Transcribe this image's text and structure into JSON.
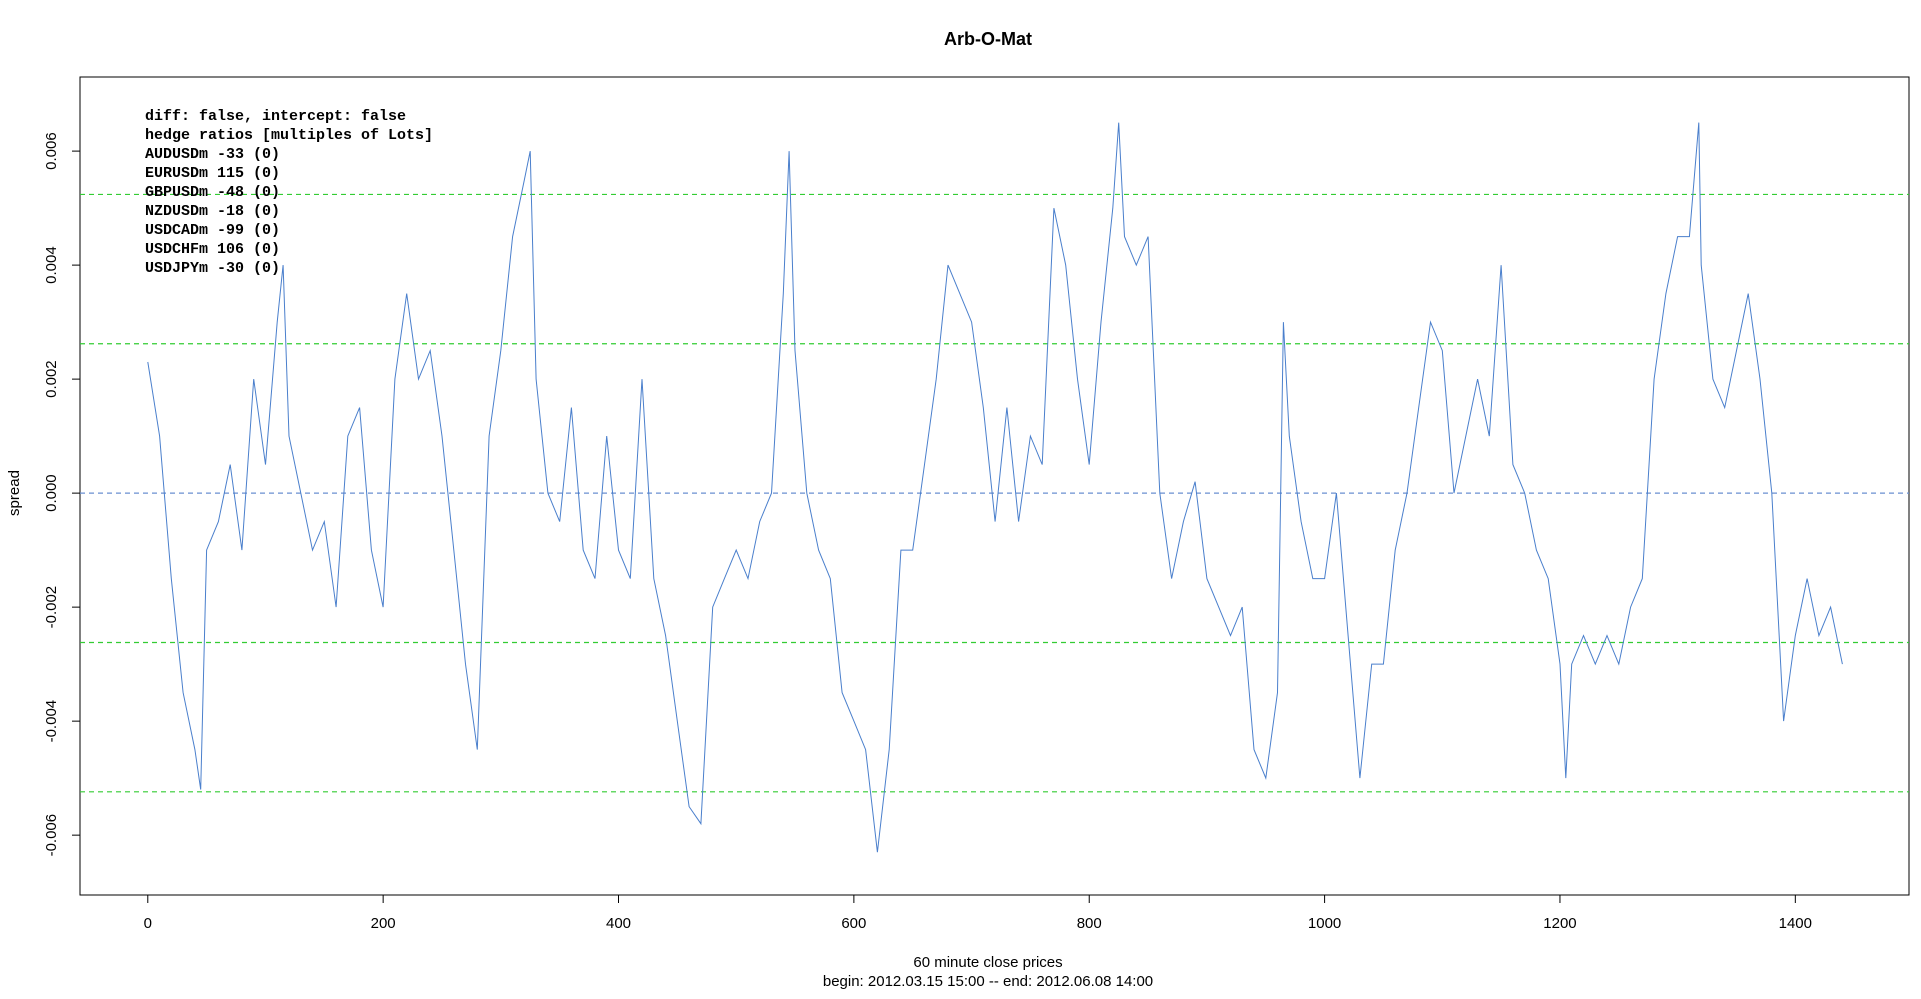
{
  "chart_data": {
    "type": "line",
    "title": "Arb-O-Mat",
    "xlabel": "60 minute close prices",
    "subtitle": "begin: 2012.03.15 15:00 -- end: 2012.06.08 14:00",
    "ylabel": "spread",
    "annotations": [
      "diff: false, intercept: false",
      "hedge ratios [multiples of Lots]",
      "AUDUSDm -33 (0)",
      "EURUSDm 115 (0)",
      "GBPUSDm -48 (0)",
      "NZDUSDm -18 (0)",
      "USDCADm -99 (0)",
      "USDCHFm 106 (0)",
      "USDJPYm -30 (0)"
    ],
    "xlim": [
      -57.6,
      1496.6
    ],
    "ylim": [
      -0.00705,
      0.0073
    ],
    "xticks": [
      0,
      200,
      400,
      600,
      800,
      1000,
      1200,
      1400
    ],
    "yticks": [
      -0.006,
      -0.004,
      -0.002,
      {
        "value": 0,
        "label": "0.000"
      },
      0.002,
      0.004,
      0.006
    ],
    "hlines": [
      {
        "value": 0.00524,
        "color": "#33cc33"
      },
      {
        "value": 0.00262,
        "color": "#33cc33"
      },
      {
        "value": 0,
        "color": "#6a8fd0"
      },
      {
        "value": -0.00262,
        "color": "#33cc33"
      },
      {
        "value": -0.00524,
        "color": "#33cc33"
      }
    ],
    "series": [
      {
        "color": "#4a7fcc",
        "x": [
          0,
          10,
          20,
          30,
          40,
          45,
          50,
          60,
          70,
          80,
          90,
          100,
          110,
          115,
          120,
          130,
          140,
          150,
          160,
          170,
          180,
          190,
          200,
          210,
          220,
          230,
          240,
          250,
          260,
          270,
          280,
          290,
          300,
          310,
          320,
          325,
          330,
          340,
          350,
          360,
          370,
          380,
          390,
          400,
          410,
          420,
          430,
          440,
          450,
          460,
          470,
          480,
          490,
          500,
          510,
          520,
          530,
          540,
          545,
          550,
          560,
          570,
          580,
          590,
          600,
          610,
          620,
          630,
          640,
          650,
          660,
          670,
          680,
          690,
          700,
          710,
          720,
          730,
          740,
          750,
          760,
          770,
          780,
          790,
          800,
          810,
          820,
          825,
          830,
          840,
          850,
          860,
          870,
          880,
          890,
          900,
          910,
          920,
          930,
          940,
          950,
          960,
          965,
          970,
          980,
          990,
          1000,
          1010,
          1020,
          1030,
          1040,
          1050,
          1060,
          1070,
          1080,
          1090,
          1100,
          1110,
          1120,
          1130,
          1140,
          1150,
          1160,
          1170,
          1180,
          1190,
          1200,
          1205,
          1210,
          1220,
          1230,
          1240,
          1250,
          1260,
          1270,
          1280,
          1290,
          1300,
          1310,
          1318,
          1320,
          1330,
          1340,
          1350,
          1360,
          1370,
          1380,
          1390,
          1400,
          1410,
          1420,
          1430,
          1440
        ],
        "values": [
          0.0023,
          0.001,
          -0.0015,
          -0.0035,
          -0.0045,
          -0.0052,
          -0.001,
          -0.0005,
          0.0005,
          -0.001,
          0.002,
          0.0005,
          0.003,
          0.004,
          0.001,
          0.0,
          -0.001,
          -0.0005,
          -0.002,
          0.001,
          0.0015,
          -0.001,
          -0.002,
          0.002,
          0.0035,
          0.002,
          0.0025,
          0.001,
          -0.001,
          -0.003,
          -0.0045,
          0.001,
          0.0025,
          0.0045,
          0.0055,
          0.006,
          0.002,
          0.0,
          -0.0005,
          0.0015,
          -0.001,
          -0.0015,
          0.001,
          -0.001,
          -0.0015,
          0.002,
          -0.0015,
          -0.0025,
          -0.004,
          -0.0055,
          -0.0058,
          -0.002,
          -0.0015,
          -0.001,
          -0.0015,
          -0.0005,
          0.0,
          0.0035,
          0.006,
          0.0025,
          0.0,
          -0.001,
          -0.0015,
          -0.0035,
          -0.004,
          -0.0045,
          -0.0063,
          -0.0045,
          -0.001,
          -0.001,
          0.0005,
          0.002,
          0.004,
          0.0035,
          0.003,
          0.0015,
          -0.0005,
          0.0015,
          -0.0005,
          0.001,
          0.0005,
          0.005,
          0.004,
          0.002,
          0.0005,
          0.003,
          0.005,
          0.0065,
          0.0045,
          0.004,
          0.0045,
          0.0,
          -0.0015,
          -0.0005,
          0.0002,
          -0.0015,
          -0.002,
          -0.0025,
          -0.002,
          -0.0045,
          -0.005,
          -0.0035,
          0.003,
          0.001,
          -0.0005,
          -0.0015,
          -0.0015,
          0.0,
          -0.0025,
          -0.005,
          -0.003,
          -0.003,
          -0.001,
          0.0,
          0.0015,
          0.003,
          0.0025,
          0.0,
          0.001,
          0.002,
          0.001,
          0.004,
          0.0005,
          0.0,
          -0.001,
          -0.0015,
          -0.003,
          -0.005,
          -0.003,
          -0.0025,
          -0.003,
          -0.0025,
          -0.003,
          -0.002,
          -0.0015,
          0.002,
          0.0035,
          0.0045,
          0.0045,
          0.0065,
          0.004,
          0.002,
          0.0015,
          0.0025,
          0.0035,
          0.002,
          0.0,
          -0.004,
          -0.0025,
          -0.0015,
          -0.0025,
          -0.002,
          -0.003
        ]
      }
    ]
  }
}
